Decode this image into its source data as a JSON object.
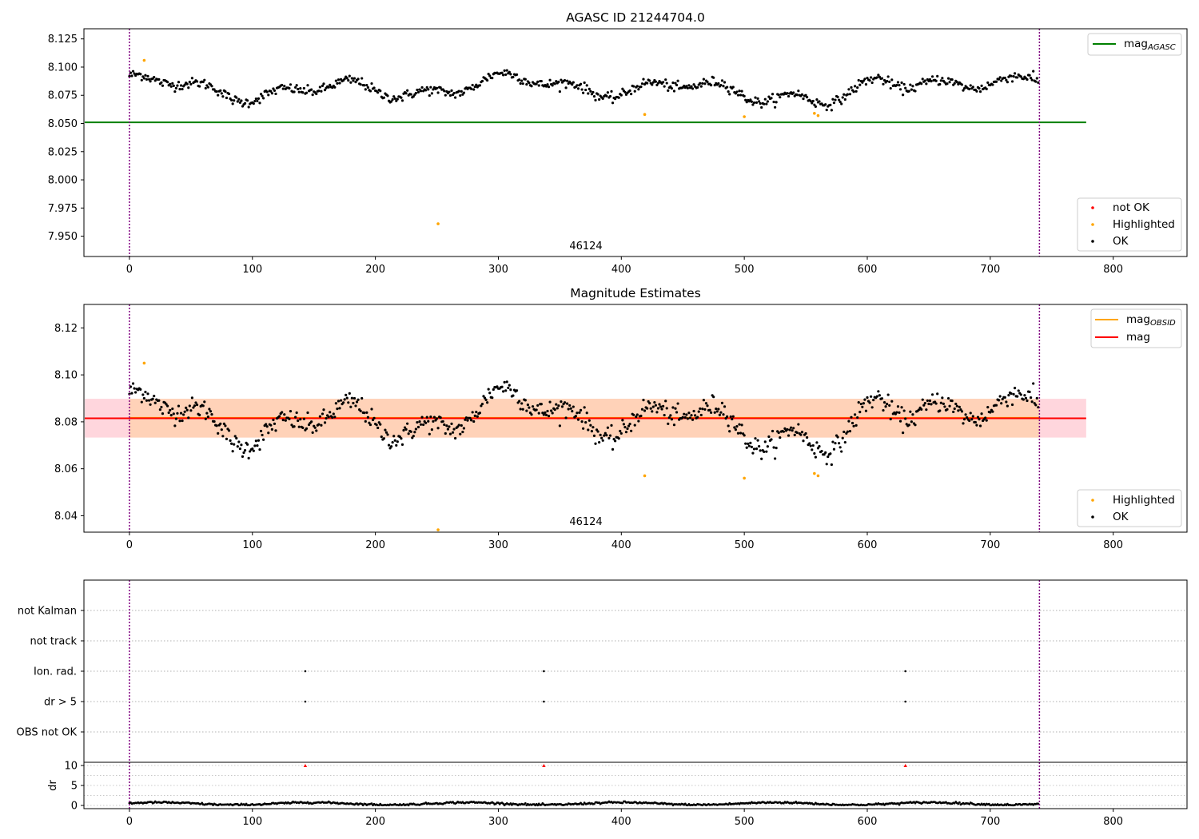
{
  "chart_data": [
    {
      "type": "scatter",
      "title": "AGASC ID 21244704.0",
      "annotation": "46124",
      "xlim": [
        -37,
        860
      ],
      "ylim": [
        7.932,
        8.134
      ],
      "xticks": [
        0,
        100,
        200,
        300,
        400,
        500,
        600,
        700,
        800
      ],
      "yticks": [
        7.95,
        7.975,
        8.0,
        8.025,
        8.05,
        8.075,
        8.1,
        8.125
      ],
      "ytick_labels": [
        "7.950",
        "7.975",
        "8.000",
        "8.025",
        "8.050",
        "8.075",
        "8.100",
        "8.125"
      ],
      "obs_boundaries": [
        0,
        740
      ],
      "reference_line": {
        "name": "mag_AGASC",
        "value": 8.051,
        "x_range": [
          -37,
          778
        ],
        "color": "#008000"
      },
      "series": [
        {
          "name": "not OK",
          "color": "#ff0000",
          "points": []
        },
        {
          "name": "Highlighted",
          "color": "#ffa500",
          "points": [
            [
              12,
              8.106
            ],
            [
              251,
              7.961
            ],
            [
              419,
              8.058
            ],
            [
              500,
              8.056
            ],
            [
              557,
              8.059
            ],
            [
              560,
              8.057
            ]
          ]
        },
        {
          "name": "OK",
          "color": "#000000",
          "model": "wave",
          "x_range": [
            0,
            740
          ],
          "n_points": 740
        }
      ],
      "legend_top": {
        "position": "upper right",
        "entries": [
          {
            "label": "mag",
            "subscript": "AGASC",
            "color": "#008000"
          }
        ]
      },
      "legend_bottom": {
        "position": "lower right",
        "entries": [
          {
            "label": "not OK",
            "color": "#ff0000"
          },
          {
            "label": "Highlighted",
            "color": "#ffa500"
          },
          {
            "label": "OK",
            "color": "#000000"
          }
        ]
      }
    },
    {
      "type": "scatter",
      "title": "Magnitude Estimates",
      "annotation": "46124",
      "xlim": [
        -37,
        860
      ],
      "ylim": [
        8.033,
        8.13
      ],
      "xticks": [
        0,
        100,
        200,
        300,
        400,
        500,
        600,
        700,
        800
      ],
      "yticks": [
        8.04,
        8.06,
        8.08,
        8.1,
        8.12
      ],
      "ytick_labels": [
        "8.04",
        "8.06",
        "8.08",
        "8.10",
        "8.12"
      ],
      "obs_boundaries": [
        0,
        740
      ],
      "bands": [
        {
          "name": "mag range",
          "low": 8.0733,
          "high": 8.0898,
          "x_range": [
            -37,
            778
          ],
          "color": "#ffd6dd"
        },
        {
          "name": "mag_OBSID range",
          "low": 8.0733,
          "high": 8.0898,
          "x_range": [
            0,
            740
          ],
          "color": "#ffd2b8"
        }
      ],
      "lines": [
        {
          "name": "mag_OBSID",
          "value": 8.0817,
          "x_range": [
            0,
            740
          ],
          "color": "#ffa500"
        },
        {
          "name": "mag",
          "value": 8.0815,
          "x_range": [
            -37,
            778
          ],
          "color": "#ff0000"
        }
      ],
      "series": [
        {
          "name": "Highlighted",
          "color": "#ffa500",
          "points": [
            [
              12,
              8.105
            ],
            [
              251,
              8.034
            ],
            [
              419,
              8.057
            ],
            [
              500,
              8.056
            ],
            [
              557,
              8.058
            ],
            [
              560,
              8.057
            ]
          ]
        },
        {
          "name": "OK",
          "color": "#000000",
          "model": "wave",
          "x_range": [
            0,
            740
          ],
          "n_points": 740
        }
      ],
      "legend_top": {
        "position": "upper right",
        "entries": [
          {
            "label": "mag",
            "subscript": "OBSID",
            "color": "#ffa500"
          },
          {
            "label": "mag",
            "subscript": "",
            "color": "#ff0000"
          }
        ]
      },
      "legend_bottom": {
        "position": "lower right",
        "entries": [
          {
            "label": "Highlighted",
            "color": "#ffa500"
          },
          {
            "label": "OK",
            "color": "#000000"
          }
        ]
      }
    },
    {
      "type": "scatter",
      "title": "",
      "xlim": [
        -37,
        860
      ],
      "categories": [
        "not Kalman",
        "not track",
        "Ion. rad.",
        "dr > 5",
        "OBS not OK"
      ],
      "obs_boundaries": [
        0,
        740
      ],
      "flag_events": [
        {
          "category": "Ion. rad.",
          "x": [
            143,
            337,
            631
          ]
        },
        {
          "category": "dr > 5",
          "x": [
            143,
            337,
            631
          ]
        }
      ]
    },
    {
      "type": "scatter",
      "title": "",
      "ylabel": "dr",
      "xlim": [
        -37,
        860
      ],
      "ylim": [
        -0.8,
        10.8
      ],
      "xticks": [
        0,
        100,
        200,
        300,
        400,
        500,
        600,
        700,
        800
      ],
      "yticks": [
        0,
        5,
        10
      ],
      "ytick_labels": [
        "0",
        "5",
        "10"
      ],
      "obs_boundaries": [
        0,
        740
      ],
      "series": [
        {
          "name": "dr",
          "color": "#000000",
          "model": "dr",
          "x_range": [
            0,
            740
          ],
          "n_points": 740
        },
        {
          "name": "clipped",
          "color": "#ff0000",
          "marker": "triangle-up",
          "points": [
            [
              143,
              10
            ],
            [
              337,
              10
            ],
            [
              631,
              10
            ]
          ]
        }
      ]
    }
  ]
}
